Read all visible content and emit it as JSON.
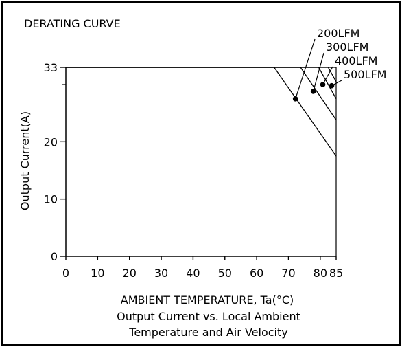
{
  "chart_data": {
    "type": "line",
    "title": "DERATING CURVE",
    "xlabel": "AMBIENT TEMPERATURE, Ta(°C)",
    "ylabel": "Output Current(A)",
    "caption_lines": [
      "Output Current vs. Local Ambient",
      "Temperature and Air Velocity"
    ],
    "xlim": [
      0,
      85
    ],
    "ylim": [
      0,
      33
    ],
    "x_ticks": [
      {
        "value": 0,
        "label": "0"
      },
      {
        "value": 10,
        "label": "10"
      },
      {
        "value": 20,
        "label": "20"
      },
      {
        "value": 30,
        "label": "30"
      },
      {
        "value": 40,
        "label": "40"
      },
      {
        "value": 50,
        "label": "50"
      },
      {
        "value": 60,
        "label": "60"
      },
      {
        "value": 70,
        "label": "70"
      },
      {
        "value": 80,
        "label": "80"
      },
      {
        "value": 85,
        "label": "85"
      }
    ],
    "y_ticks": [
      {
        "value": 0,
        "label": "0"
      },
      {
        "value": 10,
        "label": "10"
      },
      {
        "value": 20,
        "label": "20"
      },
      {
        "value": 33,
        "label": "33"
      }
    ],
    "series": [
      {
        "name": "200LFM",
        "points": [
          [
            0,
            33
          ],
          [
            65.5,
            33
          ],
          [
            85,
            17.5
          ]
        ],
        "marker": [
          72.2,
          27.5
        ]
      },
      {
        "name": "300LFM",
        "points": [
          [
            0,
            33
          ],
          [
            73.8,
            33
          ],
          [
            85,
            23.8
          ]
        ],
        "marker": [
          77.8,
          28.8
        ]
      },
      {
        "name": "400LFM",
        "points": [
          [
            0,
            33
          ],
          [
            79.5,
            33
          ],
          [
            85,
            27.5
          ]
        ],
        "marker": [
          80.8,
          30.0
        ]
      },
      {
        "name": "500LFM",
        "points": [
          [
            0,
            33
          ],
          [
            82.5,
            33
          ],
          [
            85,
            30.5
          ]
        ],
        "marker": [
          83.6,
          29.8
        ]
      }
    ],
    "colors": {
      "stroke": "#000000",
      "background": "#ffffff"
    }
  }
}
